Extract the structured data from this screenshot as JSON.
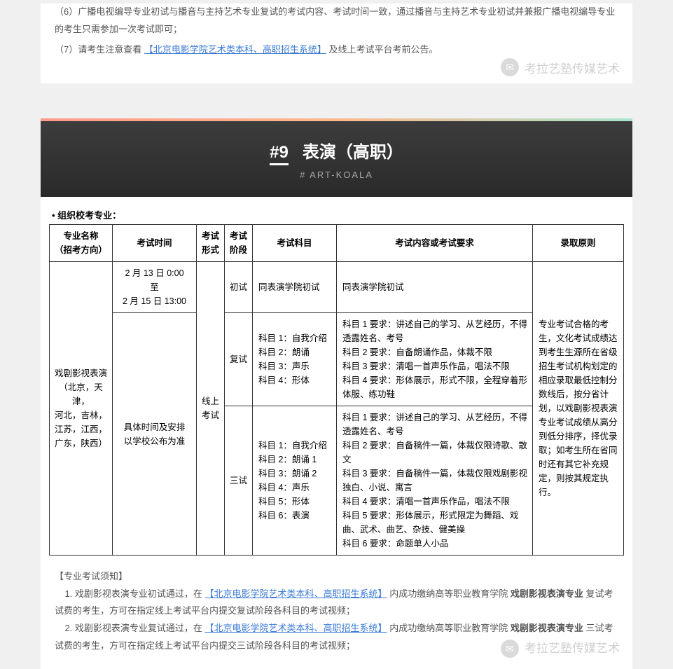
{
  "topNotices": {
    "n6": "（6）广播电视编导专业初试与播音与主持艺术专业复试的考试内容、考试时间一致，通过播音与主持艺术专业初试并兼报广播电视编导专业的考生只需参加一次考试即可；",
    "n7_pre": "（7）请考生注意查看",
    "n7_link": "【北京电影学院艺术类本科、高职招生系统】",
    "n7_post": "及线上考试平台考前公告。"
  },
  "watermark": "考拉艺塾传媒艺术",
  "header": {
    "number": "#9",
    "title": "表演（高职）",
    "sub": "# ART-KOALA"
  },
  "tableLabel": "• 组织校考专业：",
  "thead": {
    "c1": "专业名称\n（招考方向）",
    "c2": "考试时间",
    "c3": "考试\n形式",
    "c4": "考试\n阶段",
    "c5": "考试科目",
    "c6": "考试内容或考试要求",
    "c7": "录取原则"
  },
  "row": {
    "majorName": "戏剧影视表演\n（北京，天津，\n河北，吉林，\n江苏，江西，\n广东，陕西）",
    "time1": "2 月 13 日 0:00\n至\n2 月 15 日 13:00",
    "time2": "具体时间及安排\n以学校公布为准",
    "form": "线上\n考试",
    "stage1": "初试",
    "subj1": "同表演学院初试",
    "req1": "同表演学院初试",
    "stage2": "复试",
    "subj2": "科目 1：自我介绍\n科目 2：朗诵\n科目 3：声乐\n科目 4：形体",
    "req2": "科目 1 要求：讲述自己的学习、从艺经历，不得透露姓名、考号\n科目 2 要求：自备朗诵作品，体裁不限\n科目 3 要求：清唱一首声乐作品，唱法不限\n科目 4 要求：形体展示，形式不限，全程穿着形体服、练功鞋",
    "stage3": "三试",
    "subj3": "科目 1：自我介绍\n科目 2：朗诵 1\n科目 3：朗诵 2\n科目 4：声乐\n科目 5：形体\n科目 6：表演",
    "req3": "科目 1 要求：讲述自己的学习、从艺经历，不得透露姓名、考号\n科目 2 要求：自备稿件一篇，体裁仅限诗歌、散文\n科目 3 要求：自备稿件一篇，体裁仅限戏剧影视独白、小说、寓言\n科目 4 要求：清唱一首声乐作品，唱法不限\n科目 5 要求：形体展示，形式限定为舞蹈、戏曲、武术、曲艺、杂技、健美操\n科目 6 要求：命题单人小品",
    "rule": "专业考试合格的考生，文化考试成绩达到考生生源所在省级招生考试机构划定的相应录取最低控制分数线后，按分省计划，以戏剧影视表演专业考试成绩从高分到低分排序，择优录取；如考生所在省同时还有其它补充规定，则按其规定执行。"
  },
  "foot": {
    "title": "【专业考试须知】",
    "f1a": "1. 戏剧影视表演专业初试通过，在",
    "f1link": "【北京电影学院艺术类本科、高职招生系统】",
    "f1b": "内成功缴纳高等职业教育学院",
    "f1bold": "戏剧影视表演专业",
    "f1c": "复试考试费的考生，方可在指定线上考试平台内提交复试阶段各科目的考试视频；",
    "f2a": "2. 戏剧影视表演专业复试通过，在",
    "f2link": "【北京电影学院艺术类本科、高职招生系统】",
    "f2b": "内成功缴纳高等职业教育学院",
    "f2bold": "戏剧影视表演专业",
    "f2c": "三试考试费的考生，方可在指定线上考试平台内提交三试阶段各科目的考试视频；"
  }
}
